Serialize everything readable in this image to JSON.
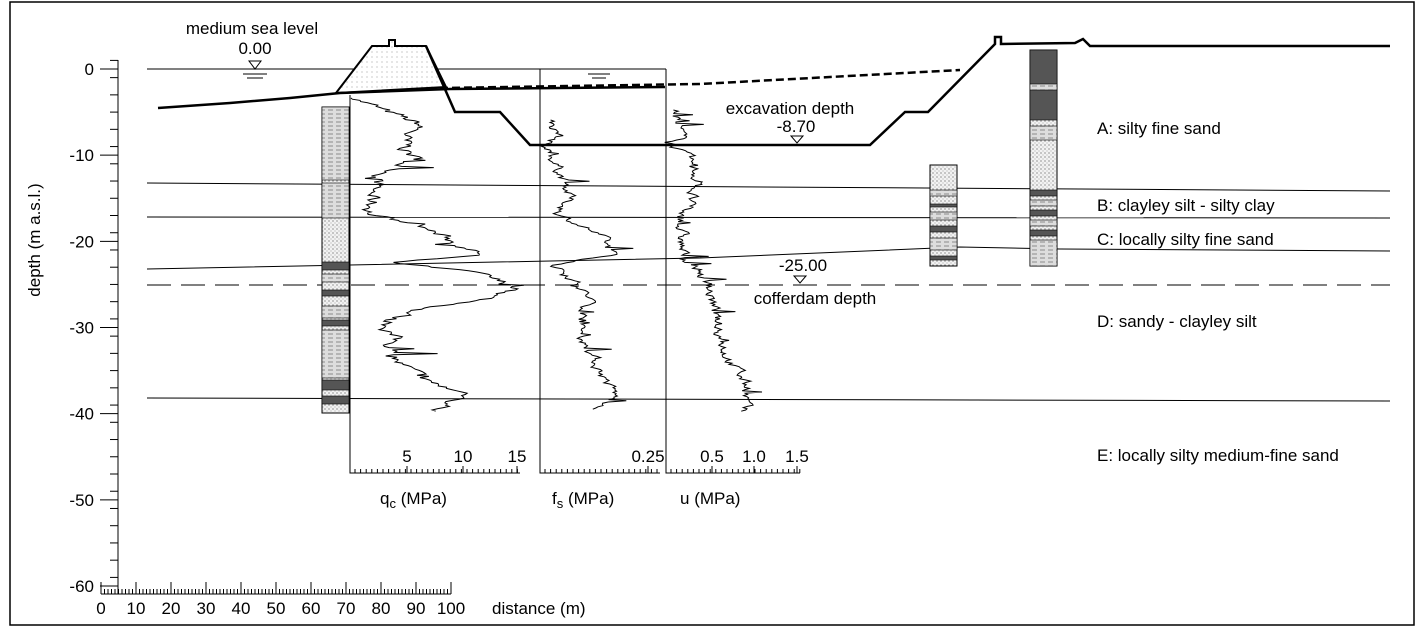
{
  "figure": {
    "y_axis": {
      "label": "depth (m a.s.l.)",
      "ticks": [
        "0",
        "-10",
        "-20",
        "-30",
        "-40",
        "-50",
        "-60"
      ]
    },
    "x_axis": {
      "label": "distance (m)",
      "ticks": [
        "0",
        "10",
        "20",
        "30",
        "40",
        "50",
        "60",
        "70",
        "80",
        "90",
        "100"
      ]
    },
    "annotations": {
      "sea_level": "medium sea level",
      "sea_level_value": "0.00",
      "excavation": "excavation depth",
      "excavation_value": "-8.70",
      "cofferdam_value": "-25.00",
      "cofferdam": "cofferdam depth"
    },
    "panels": [
      {
        "symbol": "q",
        "subscript": "c",
        "unit": "(MPa)",
        "ticks": [
          "5",
          "10",
          "15"
        ]
      },
      {
        "symbol": "f",
        "subscript": "s",
        "unit": "(MPa)",
        "ticks": [
          "0.25"
        ]
      },
      {
        "symbol": "u",
        "unit": "(MPa)",
        "ticks": [
          "0.5",
          "1.0",
          "1.5"
        ]
      }
    ],
    "layers": [
      "A: silty fine sand",
      "B: clayley silt - silty clay",
      "C: locally silty fine sand",
      "D: sandy - clayley silt",
      "E: locally silty medium-fine sand"
    ]
  }
}
